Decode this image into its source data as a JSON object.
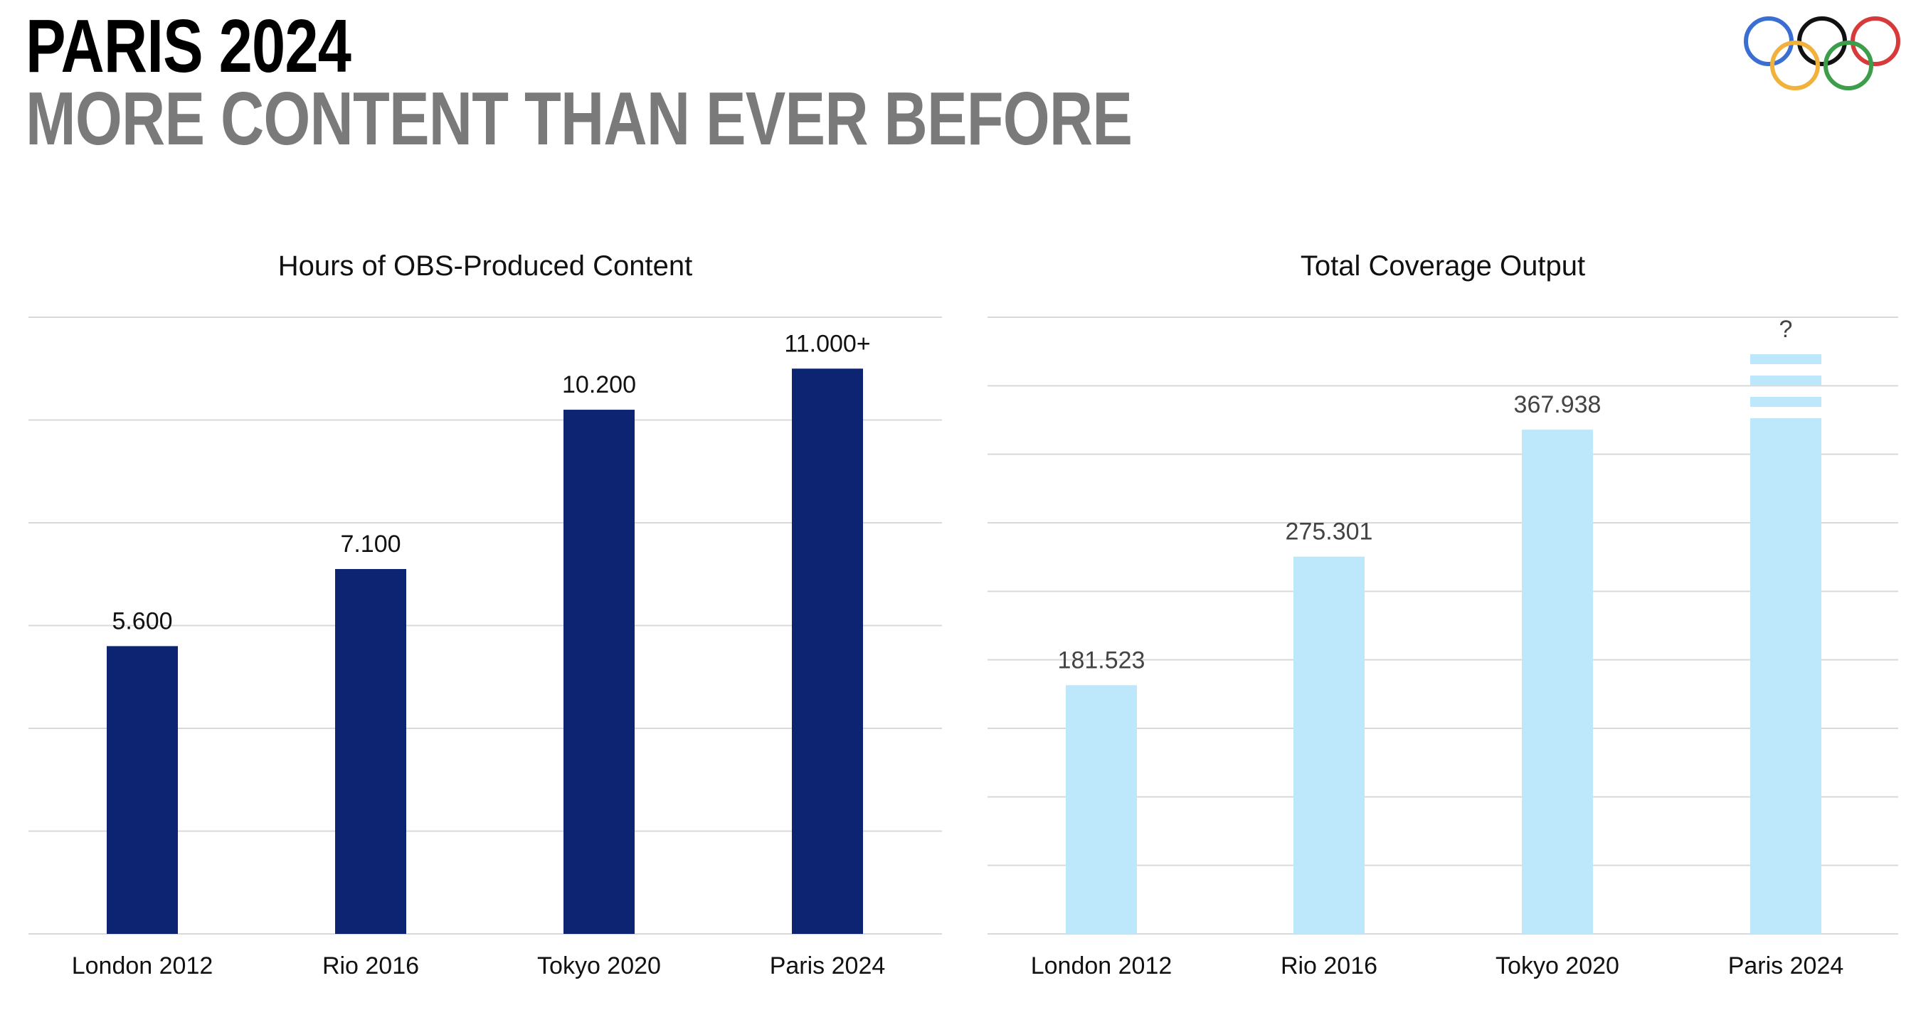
{
  "header": {
    "title": "PARIS 2024",
    "subtitle": "MORE CONTENT THAN EVER BEFORE"
  },
  "logo": {
    "icon": "olympic-rings-icon",
    "colors": [
      "#3a6fd1",
      "#111111",
      "#d63a3a",
      "#f0b23c",
      "#3c9d4a"
    ]
  },
  "colors": {
    "left_bar": "#0d2472",
    "right_bar": "#bde8fb",
    "grid": "#d9d9d9"
  },
  "chart_data": [
    {
      "type": "bar",
      "title": "Hours of OBS-Produced Content",
      "categories": [
        "London 2012",
        "Rio 2016",
        "Tokyo 2020",
        "Paris 2024"
      ],
      "values": [
        5600,
        7100,
        10200,
        11000
      ],
      "labels": [
        "5.600",
        "7.100",
        "10.200",
        "11.000+"
      ],
      "ylim": [
        0,
        12000
      ],
      "grid": true,
      "xlabel": "",
      "ylabel": ""
    },
    {
      "type": "bar",
      "title": "Total Coverage Output",
      "categories": [
        "London 2012",
        "Rio 2016",
        "Tokyo 2020",
        "Paris 2024"
      ],
      "values": [
        181523,
        275301,
        367938,
        null
      ],
      "labels": [
        "181.523",
        "275.301",
        "367.938",
        "?"
      ],
      "ylim": [
        0,
        450000
      ],
      "grid": true,
      "xlabel": "",
      "ylabel": "",
      "annotation": "Paris 2024 value unknown (striped bar with '?')"
    }
  ]
}
